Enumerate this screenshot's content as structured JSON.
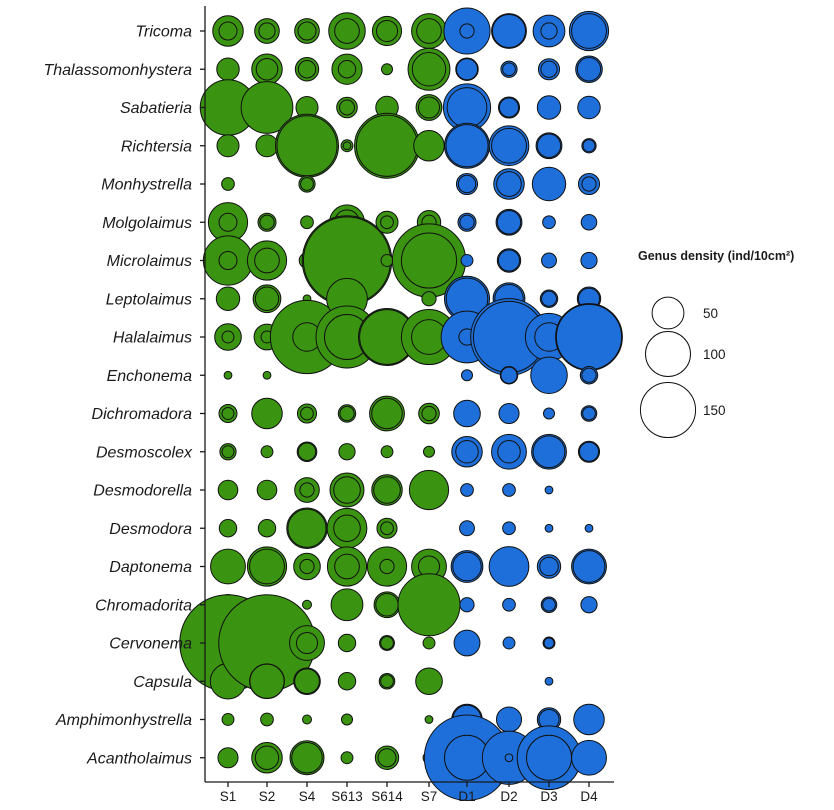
{
  "chart_data": {
    "type": "bubble",
    "title": "",
    "xlabel": "",
    "ylabel": "",
    "sites": [
      "S1",
      "S2",
      "S4",
      "S613",
      "S614",
      "S7",
      "D1",
      "D2",
      "D3",
      "D4"
    ],
    "genera": [
      "Tricoma",
      "Thalassomonhystera",
      "Sabatieria",
      "Richtersia",
      "Monhystrella",
      "Molgolaimus",
      "Microlaimus",
      "Leptolaimus",
      "Halalaimus",
      "Enchonema",
      "Dichromadora",
      "Desmoscolex",
      "Desmodorella",
      "Desmodora",
      "Daptonema",
      "Chromadorita",
      "Cervonema",
      "Capsula",
      "Amphimonhystrella",
      "Acantholaimus"
    ],
    "size_variable": "Genus density (ind/10cm²)",
    "colors": {
      "shallow": "#3a9311",
      "deep": "#1e6fd9"
    },
    "legend": {
      "title": "Genus density (ind/10cm²)",
      "sizes": [
        50,
        100,
        150
      ],
      "labels": [
        "50",
        "100",
        "150"
      ],
      "position": "right"
    },
    "series": [
      {
        "site": "S1",
        "group": "shallow",
        "outer": [
          46,
          25,
          152,
          24,
          8,
          76,
          120,
          27,
          35,
          3,
          16,
          13,
          19,
          15,
          60,
          21,
          460,
          62,
          7,
          20
        ],
        "inner": [
          16,
          null,
          null,
          null,
          null,
          16,
          16,
          null,
          7,
          null,
          7,
          7,
          null,
          null,
          null,
          null,
          null,
          null,
          null,
          null
        ]
      },
      {
        "site": "S2",
        "group": "shallow",
        "outer": [
          30,
          46,
          132,
          24,
          null,
          16,
          76,
          38,
          33,
          3,
          46,
          7,
          19,
          15,
          76,
          19,
          460,
          60,
          8,
          46
        ],
        "inner": [
          13,
          23,
          null,
          null,
          null,
          10,
          30,
          27,
          7,
          null,
          null,
          null,
          null,
          null,
          60,
          null,
          null,
          58,
          null,
          27
        ]
      },
      {
        "site": "S4",
        "group": "shallow",
        "outer": [
          30,
          27,
          24,
          196,
          13,
          8,
          12,
          3,
          265,
          null,
          18,
          19,
          30,
          81,
          35,
          4,
          60,
          35,
          4,
          57
        ],
        "inner": [
          16,
          15,
          null,
          178,
          8,
          null,
          null,
          null,
          40,
          null,
          8,
          15,
          10,
          72,
          10,
          null,
          22,
          30,
          null,
          46
        ]
      },
      {
        "site": "S613",
        "group": "shallow",
        "outer": [
          66,
          45,
          21,
          7,
          null,
          60,
          396,
          82,
          190,
          null,
          15,
          13,
          57,
          78,
          76,
          50,
          15,
          15,
          6,
          7
        ],
        "inner": [
          30,
          15,
          11,
          3,
          null,
          30,
          375,
          null,
          100,
          null,
          10,
          null,
          35,
          35,
          30,
          null,
          null,
          null,
          null,
          null
        ]
      },
      {
        "site": "S614",
        "group": "shallow",
        "outer": [
          42,
          6,
          25,
          208,
          null,
          24,
          7,
          null,
          160,
          null,
          60,
          7,
          46,
          20,
          76,
          33,
          11,
          12,
          null,
          27
        ],
        "inner": [
          22,
          null,
          null,
          185,
          null,
          8,
          null,
          null,
          148,
          null,
          46,
          null,
          35,
          8,
          10,
          25,
          8,
          8,
          null,
          16
        ]
      },
      {
        "site": "S7",
        "group": "shallow",
        "outer": [
          60,
          87,
          33,
          46,
          null,
          27,
          265,
          10,
          150,
          null,
          21,
          6,
          76,
          null,
          60,
          190,
          7,
          35,
          3,
          7
        ],
        "inner": [
          30,
          55,
          22,
          null,
          null,
          10,
          150,
          null,
          60,
          null,
          10,
          null,
          null,
          null,
          22,
          null,
          null,
          null,
          null,
          null
        ]
      },
      {
        "site": "D1",
        "group": "deep",
        "outer": [
          105,
          25,
          110,
          100,
          22,
          16,
          7,
          100,
          132,
          6,
          35,
          46,
          8,
          11,
          50,
          10,
          33,
          null,
          46,
          360
        ],
        "inner": [
          10,
          22,
          78,
          88,
          15,
          10,
          null,
          85,
          13,
          null,
          null,
          25,
          null,
          null,
          40,
          null,
          null,
          null,
          40,
          100
        ]
      },
      {
        "site": "D2",
        "group": "deep",
        "outer": [
          60,
          13,
          22,
          78,
          46,
          33,
          27,
          50,
          290,
          15,
          20,
          60,
          8,
          8,
          78,
          8,
          7,
          null,
          31,
          140
        ],
        "inner": [
          54,
          8,
          18,
          60,
          30,
          27,
          22,
          40,
          250,
          13,
          null,
          25,
          null,
          null,
          null,
          null,
          null,
          null,
          null,
          3
        ]
      },
      {
        "site": "D3",
        "group": "deep",
        "outer": [
          50,
          22,
          27,
          33,
          55,
          8,
          11,
          15,
          110,
          66,
          6,
          60,
          3,
          3,
          27,
          12,
          7,
          3,
          27,
          200
        ],
        "inner": [
          13,
          13,
          null,
          27,
          null,
          null,
          null,
          11,
          40,
          null,
          null,
          50,
          null,
          null,
          17,
          8,
          5,
          null,
          20,
          100
        ]
      },
      {
        "site": "D4",
        "group": "deep",
        "outer": [
          76,
          35,
          25,
          10,
          22,
          12,
          13,
          27,
          220,
          15,
          12,
          22,
          null,
          3,
          60,
          13,
          null,
          null,
          46,
          60
        ],
        "inner": [
          60,
          27,
          null,
          7,
          10,
          null,
          null,
          22,
          210,
          10,
          8,
          18,
          null,
          null,
          50,
          null,
          null,
          null,
          null,
          null
        ]
      }
    ]
  }
}
